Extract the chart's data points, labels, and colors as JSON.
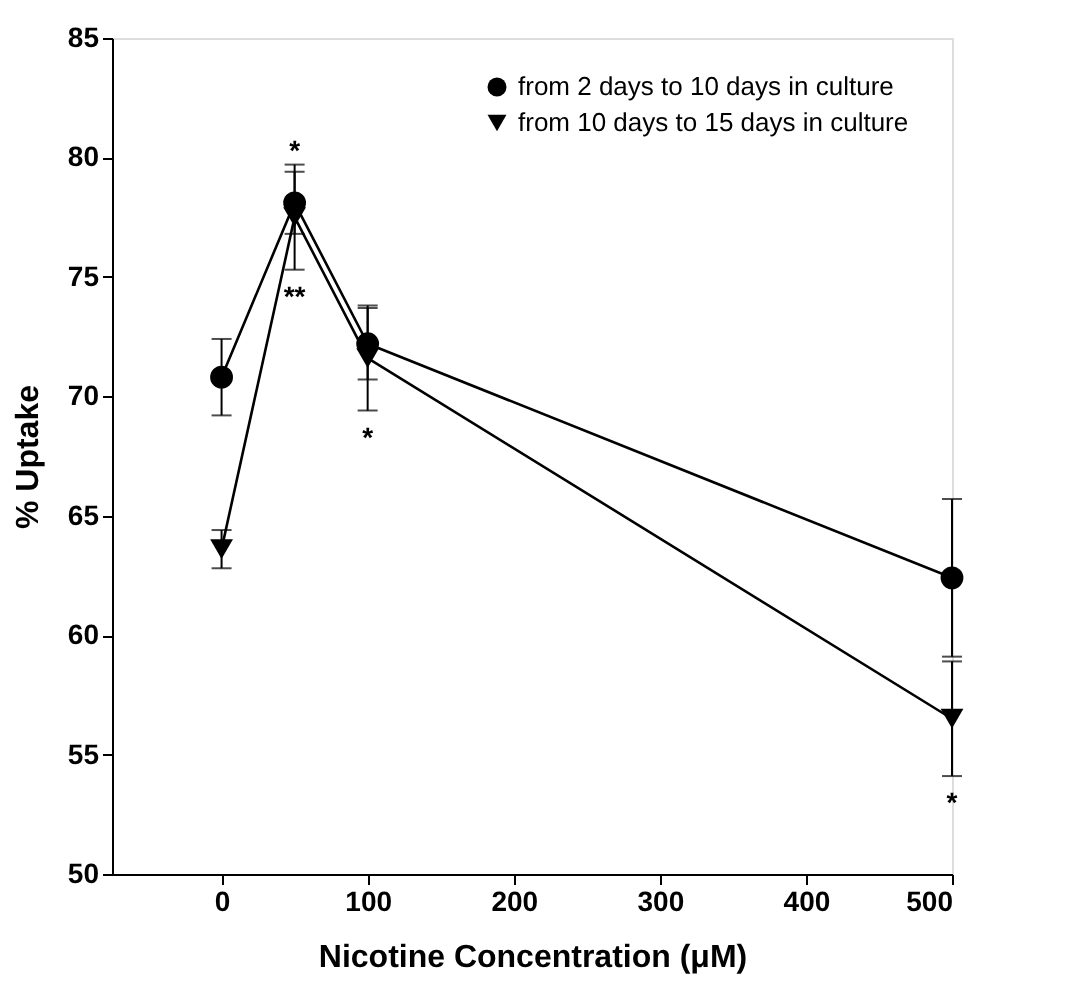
{
  "chart_data": {
    "type": "line",
    "xlabel": "Nicotine Concentration (μM)",
    "ylabel": "% Uptake",
    "x": [
      0,
      50,
      100,
      500
    ],
    "series": [
      {
        "name": "from 2 days  to 10 days in culture",
        "color": "#000000",
        "marker": "circle",
        "values": [
          70.8,
          78.1,
          72.2,
          62.4
        ],
        "errors": [
          1.6,
          1.3,
          1.5,
          3.3
        ]
      },
      {
        "name": "from 10 days  to 15 days in culture",
        "color": "#000000",
        "marker": "triangle",
        "values": [
          63.6,
          77.5,
          71.6,
          56.5
        ],
        "errors": [
          0.8,
          2.2,
          2.2,
          2.4
        ]
      }
    ],
    "xlim": [
      -75,
      500
    ],
    "xticks": [
      0,
      100,
      200,
      300,
      400,
      500
    ],
    "ylim": [
      50,
      85
    ],
    "yticks": [
      50,
      55,
      60,
      65,
      70,
      75,
      80,
      85
    ],
    "grid": false,
    "legend": "top right",
    "line_style": "solid",
    "annotations": [
      {
        "text": "*",
        "x": 50,
        "y": 78.1
      },
      {
        "text": "**",
        "x": 50,
        "y": 77.5
      },
      {
        "text": "*",
        "x": 100,
        "y": 71.6
      },
      {
        "text": "*",
        "x": 500,
        "y": 56.5
      }
    ]
  }
}
